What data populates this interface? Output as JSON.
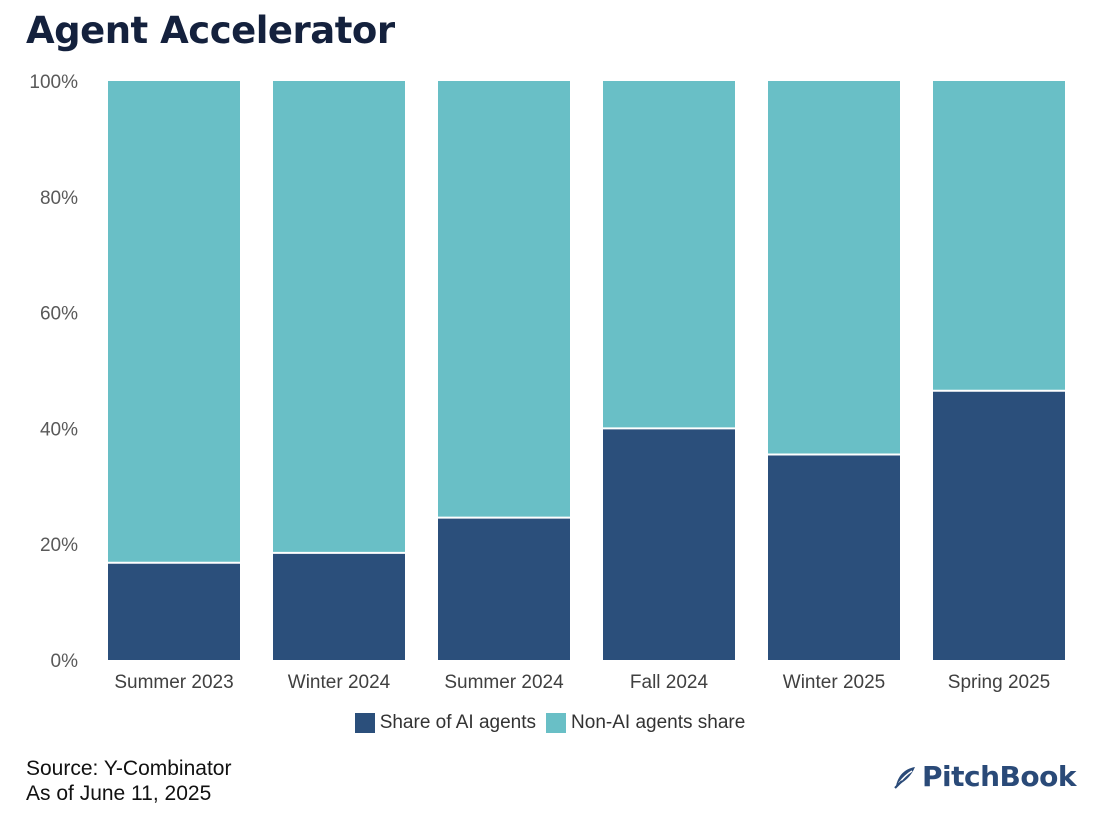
{
  "title": "Agent Accelerator",
  "chart_data": {
    "type": "bar",
    "stacked": true,
    "categories": [
      "Summer 2023",
      "Winter 2024",
      "Summer 2024",
      "Fall 2024",
      "Winter 2025",
      "Spring 2025"
    ],
    "series": [
      {
        "name": "Share of AI agents",
        "values": [
          16.8,
          18.5,
          24.6,
          40.0,
          35.5,
          46.5
        ],
        "color": "#2b4f7b"
      },
      {
        "name": "Non-AI agents share",
        "values": [
          83.2,
          81.5,
          75.4,
          60.0,
          64.5,
          53.5
        ],
        "color": "#69bfc6"
      }
    ],
    "yticks": [
      "0%",
      "20%",
      "40%",
      "60%",
      "80%",
      "100%"
    ],
    "ylim": [
      0,
      100
    ],
    "legend_position": "bottom"
  },
  "source": {
    "line1": "Source: Y-Combinator",
    "line2": "As of June 11, 2025"
  },
  "logo": {
    "text": "PitchBook"
  }
}
